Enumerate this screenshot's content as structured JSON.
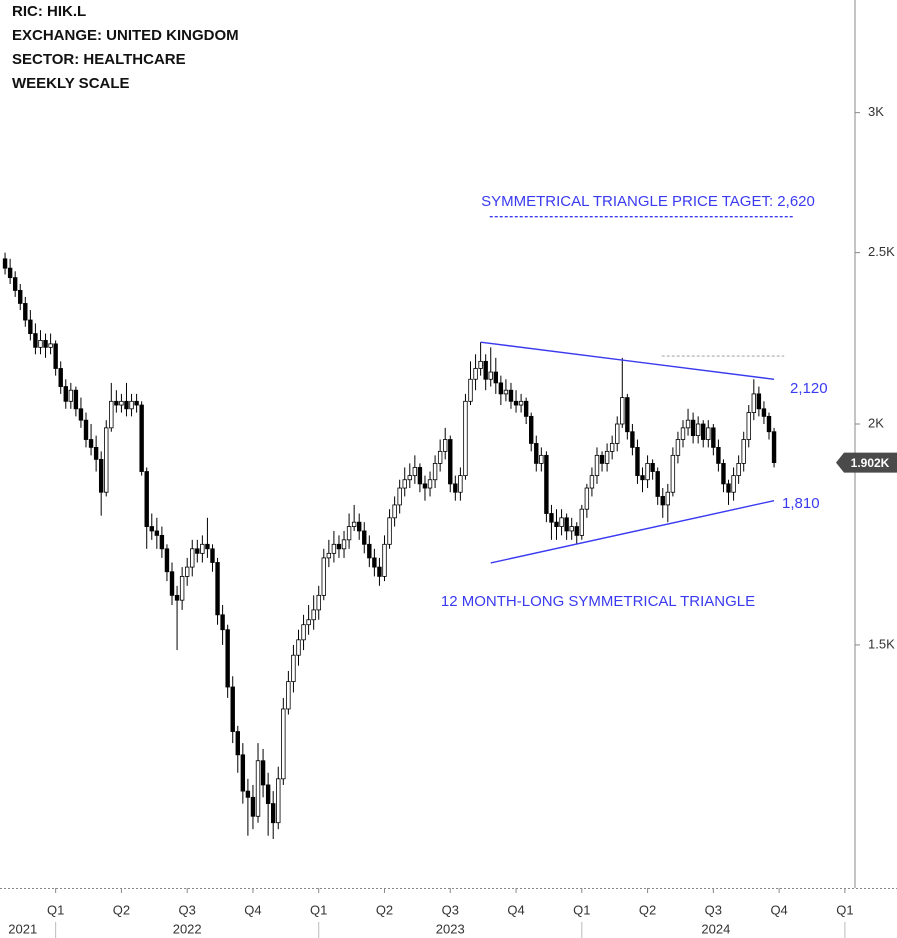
{
  "chart_data": {
    "type": "candlestick",
    "title_lines": [
      "RIC:  HIK.L",
      "EXCHANGE: UNITED KINGDOM",
      "SECTOR: HEALTHCARE",
      "WEEKLY SCALE"
    ],
    "log_scale": true,
    "ylim": [
      1093,
      3474
    ],
    "yticks": [
      {
        "value": 1500,
        "label": "1.5K"
      },
      {
        "value": 2000,
        "label": "2K"
      },
      {
        "value": 2500,
        "label": "2.5K"
      },
      {
        "value": 3000,
        "label": "3K"
      }
    ],
    "xlim": [
      -1,
      168
    ],
    "xticks": [
      {
        "value": 10,
        "label": "Q1"
      },
      {
        "value": 23,
        "label": "Q2"
      },
      {
        "value": 36,
        "label": "Q3"
      },
      {
        "value": 49,
        "label": "Q4"
      },
      {
        "value": 62,
        "label": "Q1"
      },
      {
        "value": 75,
        "label": "Q2"
      },
      {
        "value": 88,
        "label": "Q3"
      },
      {
        "value": 101,
        "label": "Q4"
      },
      {
        "value": 114,
        "label": "Q1"
      },
      {
        "value": 127,
        "label": "Q2"
      },
      {
        "value": 140,
        "label": "Q3"
      },
      {
        "value": 153,
        "label": "Q4"
      },
      {
        "value": 166,
        "label": "Q1"
      }
    ],
    "year_labels": [
      {
        "value": 3.5,
        "label": "2021"
      },
      {
        "value": 36,
        "label": "2022"
      },
      {
        "value": 88,
        "label": "2023"
      },
      {
        "value": 140.5,
        "label": "2024"
      }
    ],
    "last_price": {
      "value": 1902,
      "label": "1.902K"
    },
    "up_color": "#ffffff",
    "down_color": "#000000",
    "ohlc": [
      [
        2480,
        2500,
        2430,
        2450
      ],
      [
        2450,
        2480,
        2400,
        2420
      ],
      [
        2420,
        2440,
        2360,
        2380
      ],
      [
        2380,
        2400,
        2320,
        2340
      ],
      [
        2340,
        2360,
        2270,
        2290
      ],
      [
        2290,
        2320,
        2230,
        2250
      ],
      [
        2250,
        2280,
        2190,
        2210
      ],
      [
        2210,
        2260,
        2190,
        2230
      ],
      [
        2230,
        2250,
        2180,
        2210
      ],
      [
        2210,
        2250,
        2190,
        2220
      ],
      [
        2220,
        2230,
        2130,
        2150
      ],
      [
        2150,
        2170,
        2080,
        2100
      ],
      [
        2100,
        2120,
        2040,
        2060
      ],
      [
        2060,
        2110,
        2040,
        2090
      ],
      [
        2090,
        2100,
        2020,
        2040
      ],
      [
        2040,
        2070,
        1990,
        2010
      ],
      [
        2010,
        2030,
        1940,
        1960
      ],
      [
        1960,
        2000,
        1920,
        1940
      ],
      [
        1940,
        1970,
        1880,
        1910
      ],
      [
        1910,
        1930,
        1775,
        1830
      ],
      [
        1830,
        2010,
        1820,
        1990
      ],
      [
        1990,
        2110,
        1980,
        2060
      ],
      [
        2060,
        2090,
        2030,
        2050
      ],
      [
        2050,
        2080,
        2030,
        2060
      ],
      [
        2060,
        2110,
        2020,
        2040
      ],
      [
        2040,
        2080,
        2020,
        2060
      ],
      [
        2060,
        2080,
        2030,
        2050
      ],
      [
        2050,
        2060,
        1870,
        1880
      ],
      [
        1880,
        1890,
        1700,
        1750
      ],
      [
        1750,
        1780,
        1720,
        1740
      ],
      [
        1740,
        1770,
        1700,
        1730
      ],
      [
        1730,
        1750,
        1680,
        1700
      ],
      [
        1700,
        1710,
        1630,
        1650
      ],
      [
        1650,
        1670,
        1580,
        1600
      ],
      [
        1600,
        1620,
        1490,
        1590
      ],
      [
        1590,
        1660,
        1570,
        1640
      ],
      [
        1640,
        1680,
        1620,
        1660
      ],
      [
        1660,
        1720,
        1640,
        1700
      ],
      [
        1700,
        1720,
        1670,
        1690
      ],
      [
        1690,
        1730,
        1670,
        1710
      ],
      [
        1710,
        1770,
        1680,
        1700
      ],
      [
        1700,
        1710,
        1650,
        1670
      ],
      [
        1670,
        1680,
        1540,
        1560
      ],
      [
        1560,
        1580,
        1500,
        1530
      ],
      [
        1530,
        1540,
        1400,
        1420
      ],
      [
        1420,
        1440,
        1320,
        1340
      ],
      [
        1340,
        1350,
        1270,
        1300
      ],
      [
        1300,
        1320,
        1220,
        1240
      ],
      [
        1240,
        1260,
        1170,
        1230
      ],
      [
        1230,
        1250,
        1180,
        1200
      ],
      [
        1200,
        1320,
        1190,
        1290
      ],
      [
        1290,
        1310,
        1230,
        1250
      ],
      [
        1250,
        1270,
        1170,
        1220
      ],
      [
        1220,
        1240,
        1165,
        1190
      ],
      [
        1190,
        1280,
        1180,
        1260
      ],
      [
        1260,
        1400,
        1250,
        1380
      ],
      [
        1380,
        1450,
        1370,
        1430
      ],
      [
        1430,
        1500,
        1410,
        1480
      ],
      [
        1480,
        1530,
        1460,
        1510
      ],
      [
        1510,
        1560,
        1490,
        1540
      ],
      [
        1540,
        1580,
        1520,
        1550
      ],
      [
        1550,
        1600,
        1530,
        1570
      ],
      [
        1570,
        1620,
        1550,
        1600
      ],
      [
        1600,
        1700,
        1590,
        1680
      ],
      [
        1680,
        1720,
        1660,
        1690
      ],
      [
        1690,
        1740,
        1670,
        1710
      ],
      [
        1710,
        1730,
        1680,
        1700
      ],
      [
        1700,
        1740,
        1680,
        1720
      ],
      [
        1720,
        1780,
        1700,
        1750
      ],
      [
        1750,
        1800,
        1740,
        1760
      ],
      [
        1760,
        1780,
        1720,
        1740
      ],
      [
        1740,
        1760,
        1690,
        1710
      ],
      [
        1710,
        1730,
        1660,
        1680
      ],
      [
        1680,
        1700,
        1640,
        1660
      ],
      [
        1660,
        1680,
        1620,
        1640
      ],
      [
        1640,
        1730,
        1630,
        1710
      ],
      [
        1710,
        1790,
        1700,
        1770
      ],
      [
        1770,
        1820,
        1750,
        1800
      ],
      [
        1800,
        1860,
        1780,
        1840
      ],
      [
        1840,
        1890,
        1820,
        1860
      ],
      [
        1860,
        1900,
        1840,
        1870
      ],
      [
        1870,
        1920,
        1850,
        1890
      ],
      [
        1890,
        1900,
        1830,
        1850
      ],
      [
        1850,
        1870,
        1810,
        1840
      ],
      [
        1840,
        1880,
        1820,
        1860
      ],
      [
        1860,
        1920,
        1840,
        1900
      ],
      [
        1900,
        1960,
        1880,
        1930
      ],
      [
        1930,
        1990,
        1910,
        1960
      ],
      [
        1960,
        1970,
        1830,
        1850
      ],
      [
        1850,
        1870,
        1810,
        1830
      ],
      [
        1830,
        1890,
        1810,
        1870
      ],
      [
        1870,
        2080,
        1860,
        2060
      ],
      [
        2060,
        2170,
        2050,
        2120
      ],
      [
        2120,
        2190,
        2090,
        2150
      ],
      [
        2150,
        2225,
        2130,
        2170
      ],
      [
        2170,
        2190,
        2090,
        2120
      ],
      [
        2120,
        2210,
        2100,
        2140
      ],
      [
        2140,
        2180,
        2080,
        2110
      ],
      [
        2110,
        2130,
        2050,
        2080
      ],
      [
        2080,
        2120,
        2060,
        2090
      ],
      [
        2090,
        2110,
        2040,
        2060
      ],
      [
        2060,
        2090,
        2030,
        2050
      ],
      [
        2050,
        2080,
        2030,
        2060
      ],
      [
        2060,
        2070,
        2000,
        2020
      ],
      [
        2020,
        2030,
        1930,
        1950
      ],
      [
        1950,
        1970,
        1880,
        1900
      ],
      [
        1900,
        1940,
        1880,
        1920
      ],
      [
        1920,
        1930,
        1760,
        1780
      ],
      [
        1780,
        1800,
        1720,
        1760
      ],
      [
        1760,
        1790,
        1720,
        1750
      ],
      [
        1750,
        1790,
        1730,
        1770
      ],
      [
        1770,
        1780,
        1720,
        1740
      ],
      [
        1740,
        1770,
        1720,
        1750
      ],
      [
        1750,
        1760,
        1710,
        1730
      ],
      [
        1730,
        1800,
        1720,
        1790
      ],
      [
        1790,
        1850,
        1770,
        1840
      ],
      [
        1840,
        1890,
        1820,
        1870
      ],
      [
        1870,
        1940,
        1850,
        1920
      ],
      [
        1920,
        1930,
        1880,
        1900
      ],
      [
        1900,
        1950,
        1880,
        1930
      ],
      [
        1930,
        1970,
        1910,
        1950
      ],
      [
        1950,
        2020,
        1930,
        2000
      ],
      [
        2000,
        2180,
        1990,
        2070
      ],
      [
        2070,
        2080,
        1960,
        1980
      ],
      [
        1980,
        2000,
        1920,
        1940
      ],
      [
        1940,
        1960,
        1850,
        1870
      ],
      [
        1870,
        1890,
        1830,
        1860
      ],
      [
        1860,
        1920,
        1840,
        1900
      ],
      [
        1900,
        1910,
        1860,
        1880
      ],
      [
        1880,
        1890,
        1800,
        1820
      ],
      [
        1820,
        1840,
        1770,
        1800
      ],
      [
        1800,
        1850,
        1760,
        1830
      ],
      [
        1830,
        1940,
        1820,
        1920
      ],
      [
        1920,
        1980,
        1900,
        1960
      ],
      [
        1960,
        2010,
        1940,
        1990
      ],
      [
        1990,
        2040,
        1970,
        2010
      ],
      [
        2010,
        2030,
        1950,
        1970
      ],
      [
        1970,
        2020,
        1950,
        2000
      ],
      [
        2000,
        2010,
        1940,
        1960
      ],
      [
        1960,
        2010,
        1940,
        1990
      ],
      [
        1990,
        2000,
        1920,
        1940
      ],
      [
        1940,
        1960,
        1880,
        1900
      ],
      [
        1900,
        1910,
        1830,
        1850
      ],
      [
        1850,
        1860,
        1800,
        1830
      ],
      [
        1830,
        1890,
        1810,
        1870
      ],
      [
        1870,
        1920,
        1850,
        1900
      ],
      [
        1900,
        1980,
        1880,
        1960
      ],
      [
        1960,
        2050,
        1940,
        2030
      ],
      [
        2030,
        2120,
        2010,
        2080
      ],
      [
        2080,
        2100,
        2020,
        2040
      ],
      [
        2040,
        2060,
        2000,
        2020
      ],
      [
        2020,
        2030,
        1960,
        1980
      ],
      [
        1980,
        1990,
        1890,
        1902
      ]
    ],
    "lines": [
      {
        "x": [
          94,
          152
        ],
        "y": [
          2225,
          2120
        ],
        "color": "#3a3af0",
        "dashed": false
      },
      {
        "x": [
          96,
          152
        ],
        "y": [
          1669,
          1810
        ],
        "color": "#3a3af0",
        "dashed": false
      },
      {
        "x": [
          95.8,
          156
        ],
        "y": [
          2620,
          2620
        ],
        "color": "#3a3af0",
        "dashed": true
      },
      {
        "x": [
          129.8,
          154
        ],
        "y": [
          2185,
          2185
        ],
        "color": "#bbbbbb",
        "dashed": true
      }
    ],
    "annotations": [
      {
        "text": "SYMMETRICAL TRIANGLE PRICE TAGET: 2,620",
        "color": "#3a3af0"
      },
      {
        "text": "2,120",
        "color": "#3a3af0"
      },
      {
        "text": "1,810",
        "color": "#3a3af0"
      },
      {
        "text": "12 MONTH-LONG SYMMETRICAL TRIANGLE",
        "color": "#3a3af0"
      }
    ]
  }
}
